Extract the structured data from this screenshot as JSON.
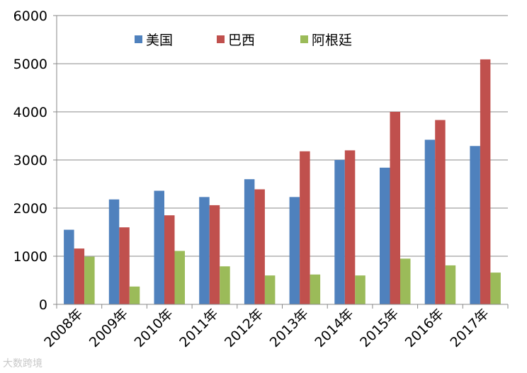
{
  "chart_data": {
    "type": "bar",
    "title": "",
    "xlabel": "",
    "ylabel": "",
    "categories": [
      "2008年",
      "2009年",
      "2010年",
      "2011年",
      "2012年",
      "2013年",
      "2014年",
      "2015年",
      "2016年",
      "2017年"
    ],
    "series": [
      {
        "name": "美国",
        "color": "#4f81bd",
        "values": [
          1550,
          2180,
          2360,
          2230,
          2600,
          2230,
          3000,
          2840,
          3420,
          3290
        ]
      },
      {
        "name": "巴西",
        "color": "#c0504d",
        "values": [
          1160,
          1600,
          1850,
          2060,
          2390,
          3180,
          3200,
          4000,
          3830,
          5090
        ]
      },
      {
        "name": "阿根廷",
        "color": "#9bbb59",
        "values": [
          990,
          370,
          1110,
          790,
          600,
          620,
          600,
          950,
          810,
          660
        ]
      }
    ],
    "ylim": [
      0,
      6000
    ],
    "yticks": [
      0,
      1000,
      2000,
      3000,
      4000,
      5000,
      6000
    ],
    "grid": true,
    "legend_position": "top"
  },
  "watermark": {
    "text": "大数跨境"
  }
}
